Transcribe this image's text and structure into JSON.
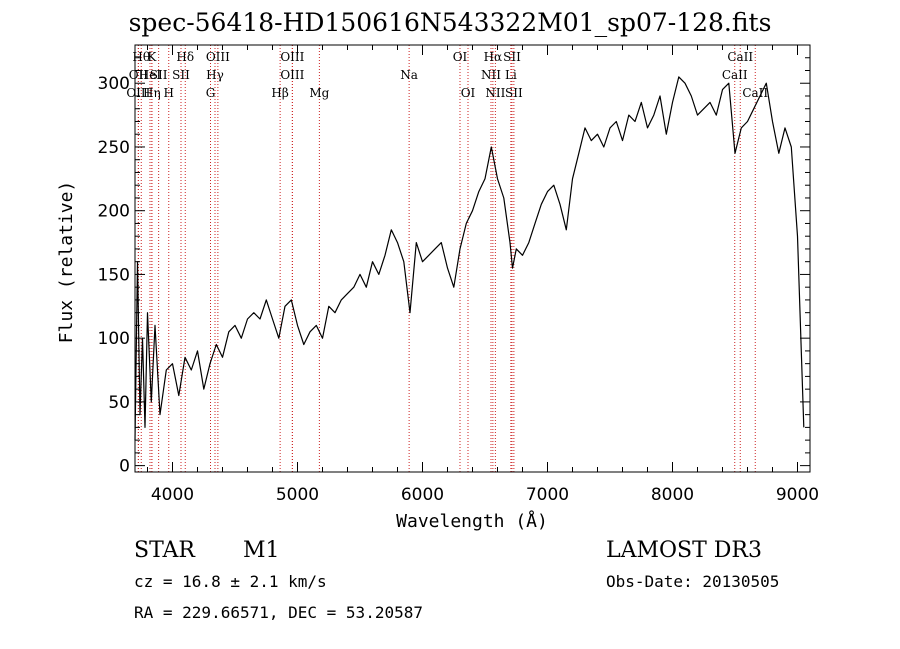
{
  "chart_data": {
    "type": "line",
    "title": "spec-56418-HD150616N543322M01_sp07-128.fits",
    "xlabel": "Wavelength (Å)",
    "ylabel": "Flux (relative)",
    "xlim": [
      3700,
      9100
    ],
    "ylim": [
      -5,
      330
    ],
    "xticks": [
      4000,
      5000,
      6000,
      7000,
      8000,
      9000
    ],
    "yticks": [
      0,
      50,
      100,
      150,
      200,
      250,
      300
    ],
    "grid": false,
    "series": [
      {
        "x": [
          3700,
          3720,
          3740,
          3760,
          3780,
          3800,
          3830,
          3860,
          3900,
          3950,
          4000,
          4050,
          4100,
          4150,
          4200,
          4250,
          4300,
          4350,
          4400,
          4450,
          4500,
          4550,
          4600,
          4650,
          4700,
          4750,
          4800,
          4850,
          4900,
          4950,
          5000,
          5050,
          5100,
          5150,
          5200,
          5250,
          5300,
          5350,
          5400,
          5450,
          5500,
          5550,
          5600,
          5650,
          5700,
          5750,
          5800,
          5850,
          5900,
          5950,
          6000,
          6050,
          6100,
          6150,
          6200,
          6250,
          6300,
          6350,
          6400,
          6450,
          6500,
          6550,
          6570,
          6600,
          6650,
          6700,
          6720,
          6750,
          6800,
          6850,
          6900,
          6950,
          7000,
          7050,
          7100,
          7150,
          7200,
          7250,
          7300,
          7350,
          7400,
          7450,
          7500,
          7550,
          7600,
          7650,
          7700,
          7750,
          7800,
          7850,
          7900,
          7950,
          8000,
          8050,
          8100,
          8150,
          8200,
          8250,
          8300,
          8350,
          8400,
          8450,
          8500,
          8550,
          8600,
          8650,
          8700,
          8750,
          8800,
          8850,
          8900,
          8950,
          9000,
          9050
        ],
        "values": [
          20,
          160,
          40,
          100,
          30,
          120,
          50,
          110,
          40,
          75,
          80,
          55,
          85,
          75,
          90,
          60,
          80,
          95,
          85,
          105,
          110,
          100,
          115,
          120,
          115,
          130,
          115,
          100,
          125,
          130,
          110,
          95,
          105,
          110,
          100,
          125,
          120,
          130,
          135,
          140,
          150,
          140,
          160,
          150,
          165,
          185,
          175,
          160,
          120,
          175,
          160,
          165,
          170,
          175,
          155,
          140,
          170,
          190,
          200,
          215,
          225,
          250,
          240,
          225,
          210,
          175,
          155,
          170,
          165,
          175,
          190,
          205,
          215,
          220,
          205,
          185,
          225,
          245,
          265,
          255,
          260,
          250,
          265,
          270,
          255,
          275,
          270,
          285,
          265,
          275,
          290,
          260,
          285,
          305,
          300,
          290,
          275,
          280,
          285,
          275,
          295,
          300,
          245,
          265,
          270,
          280,
          290,
          300,
          270,
          245,
          265,
          250,
          180,
          30
        ]
      }
    ],
    "lines": [
      {
        "x": 3750,
        "row": 0,
        "label": "Hθ"
      },
      {
        "x": 3727,
        "row": 1,
        "label": "OII"
      },
      {
        "x": 3727,
        "row": 2,
        "label": "OIII"
      },
      {
        "x": 3835,
        "row": 0,
        "label": "K"
      },
      {
        "x": 3820,
        "row": 1,
        "label": "HeI"
      },
      {
        "x": 3835,
        "row": 2,
        "label": "Hη"
      },
      {
        "x": 3889,
        "row": 1,
        "label": "SII"
      },
      {
        "x": 3970,
        "row": 2,
        "label": "H"
      },
      {
        "x": 4102,
        "row": 0,
        "label": "Hδ"
      },
      {
        "x": 4068,
        "row": 1,
        "label": "SII"
      },
      {
        "x": 4363,
        "row": 0,
        "label": "OIII"
      },
      {
        "x": 4340,
        "row": 1,
        "label": "Hγ"
      },
      {
        "x": 4304,
        "row": 2,
        "label": "G"
      },
      {
        "x": 4959,
        "row": 0,
        "label": "OIII"
      },
      {
        "x": 4959,
        "row": 1,
        "label": "OIII"
      },
      {
        "x": 4861,
        "row": 2,
        "label": "Hβ"
      },
      {
        "x": 5175,
        "row": 2,
        "label": "Mg"
      },
      {
        "x": 5893,
        "row": 1,
        "label": "Na"
      },
      {
        "x": 6300,
        "row": 0,
        "label": "OI"
      },
      {
        "x": 6364,
        "row": 2,
        "label": "OI"
      },
      {
        "x": 6563,
        "row": 0,
        "label": "Hα"
      },
      {
        "x": 6548,
        "row": 1,
        "label": "NII"
      },
      {
        "x": 6583,
        "row": 2,
        "label": "NII"
      },
      {
        "x": 6716,
        "row": 0,
        "label": "SII"
      },
      {
        "x": 6707,
        "row": 1,
        "label": "Li"
      },
      {
        "x": 6731,
        "row": 2,
        "label": "SII"
      },
      {
        "x": 8542,
        "row": 0,
        "label": "CaII"
      },
      {
        "x": 8498,
        "row": 1,
        "label": "CaII"
      },
      {
        "x": 8662,
        "row": 2,
        "label": "CaII"
      }
    ]
  },
  "info": {
    "type": "STAR",
    "subclass": "M1",
    "survey": "LAMOST DR3",
    "cz": "cz = 16.8 ± 2.1 km/s",
    "obs_date": "Obs-Date: 20130505",
    "radec": "RA = 229.66571, DEC =  53.20587"
  }
}
